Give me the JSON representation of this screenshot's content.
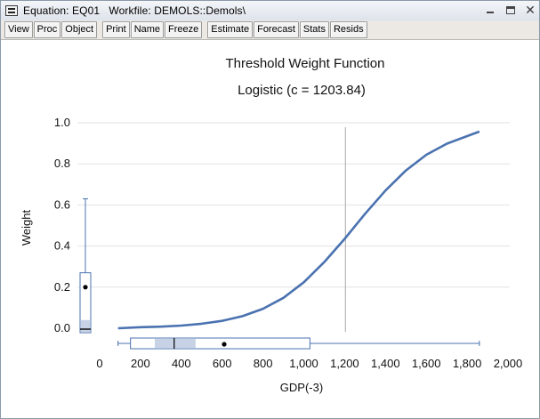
{
  "window": {
    "title": "Equation: EQ01   Workfile: DEMOLS::Demols\\",
    "min_glyph": "—",
    "close_glyph": "✕"
  },
  "toolbar": {
    "buttons": [
      "View",
      "Proc",
      "Object",
      "Print",
      "Name",
      "Freeze",
      "Estimate",
      "Forecast",
      "Stats",
      "Resids"
    ]
  },
  "chart_data": {
    "type": "line",
    "title": "Threshold Weight Function",
    "subtitle": "Logistic (c = 1203.84)",
    "xlabel": "GDP(-3)",
    "ylabel": "Weight",
    "xlim": [
      0,
      2000
    ],
    "ylim": [
      0.0,
      1.0
    ],
    "x_ticks": [
      "0",
      "200",
      "400",
      "600",
      "800",
      "1,000",
      "1,200",
      "1,400",
      "1,600",
      "1,800",
      "2,000"
    ],
    "y_ticks": [
      "0.0",
      "0.2",
      "0.4",
      "0.6",
      "0.8",
      "1.0"
    ],
    "grid": "horizontal",
    "threshold_line_x": 1203.84,
    "line_color": "#4a72b0",
    "series": [
      {
        "x": [
          90,
          200,
          300,
          400,
          500,
          600,
          700,
          800,
          900,
          1000,
          1100,
          1200,
          1300,
          1400,
          1500,
          1600,
          1700,
          1800,
          1860
        ],
        "values": [
          0.0,
          0.005,
          0.008,
          0.013,
          0.022,
          0.036,
          0.059,
          0.095,
          0.148,
          0.224,
          0.322,
          0.435,
          0.557,
          0.67,
          0.768,
          0.844,
          0.898,
          0.935,
          0.957
        ]
      }
    ],
    "x_boxplot": {
      "min": 90,
      "q1": 270,
      "median": 365,
      "q3": 470,
      "upper_box": 1030,
      "mean": 610,
      "max": 1860
    },
    "y_boxplot": {
      "min": 0.0,
      "lower_box": 0.0,
      "q3": 0.04,
      "upper_box": 0.27,
      "mean": 0.2,
      "max": 0.63
    }
  }
}
